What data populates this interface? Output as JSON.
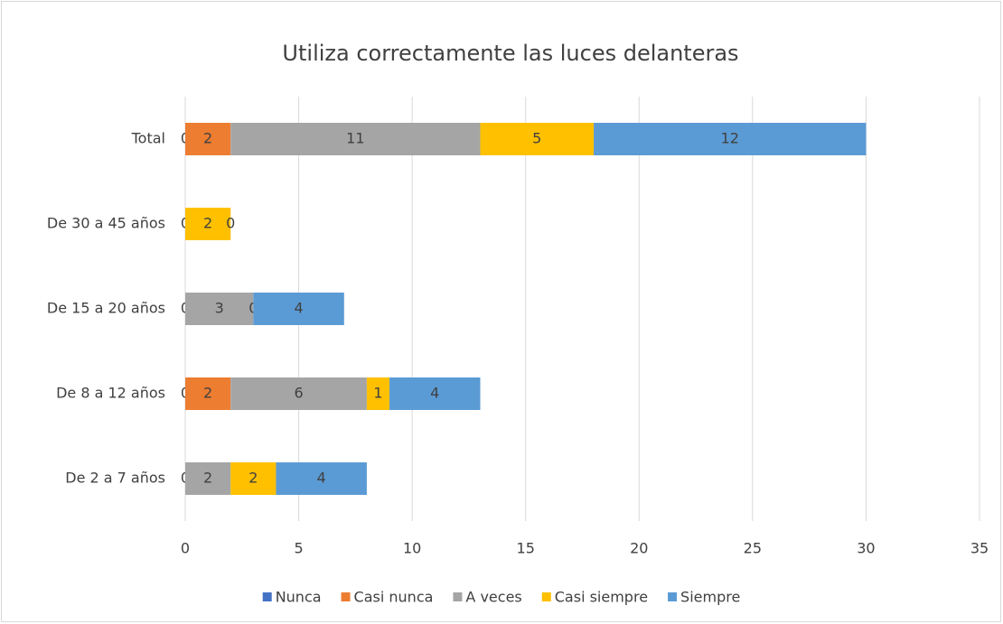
{
  "chart_data": {
    "type": "stacked_barh",
    "title": "Utiliza correctamente las luces delanteras",
    "categories": [
      "De 2 a 7 años",
      "De 8 a 12 años",
      "De 15 a 20 años",
      "De 30 a 45 años",
      "Total"
    ],
    "series": [
      {
        "name": "Nunca",
        "color": "#4472c4",
        "values": [
          0,
          0,
          0,
          0,
          0
        ]
      },
      {
        "name": "Casi nunca",
        "color": "#ed7d31",
        "values": [
          null,
          2,
          null,
          null,
          2
        ]
      },
      {
        "name": "A veces",
        "color": "#a5a5a5",
        "values": [
          2,
          6,
          3,
          null,
          11
        ]
      },
      {
        "name": "Casi siempre",
        "color": "#ffc000",
        "values": [
          2,
          1,
          0,
          2,
          5
        ]
      },
      {
        "name": "Siempre",
        "color": "#5b9bd5",
        "values": [
          4,
          4,
          4,
          0,
          12
        ]
      }
    ],
    "xlim": [
      0,
      35
    ],
    "xticks": [
      0,
      5,
      10,
      15,
      20,
      25,
      30,
      35
    ],
    "grid": true,
    "legend": "bottom"
  }
}
